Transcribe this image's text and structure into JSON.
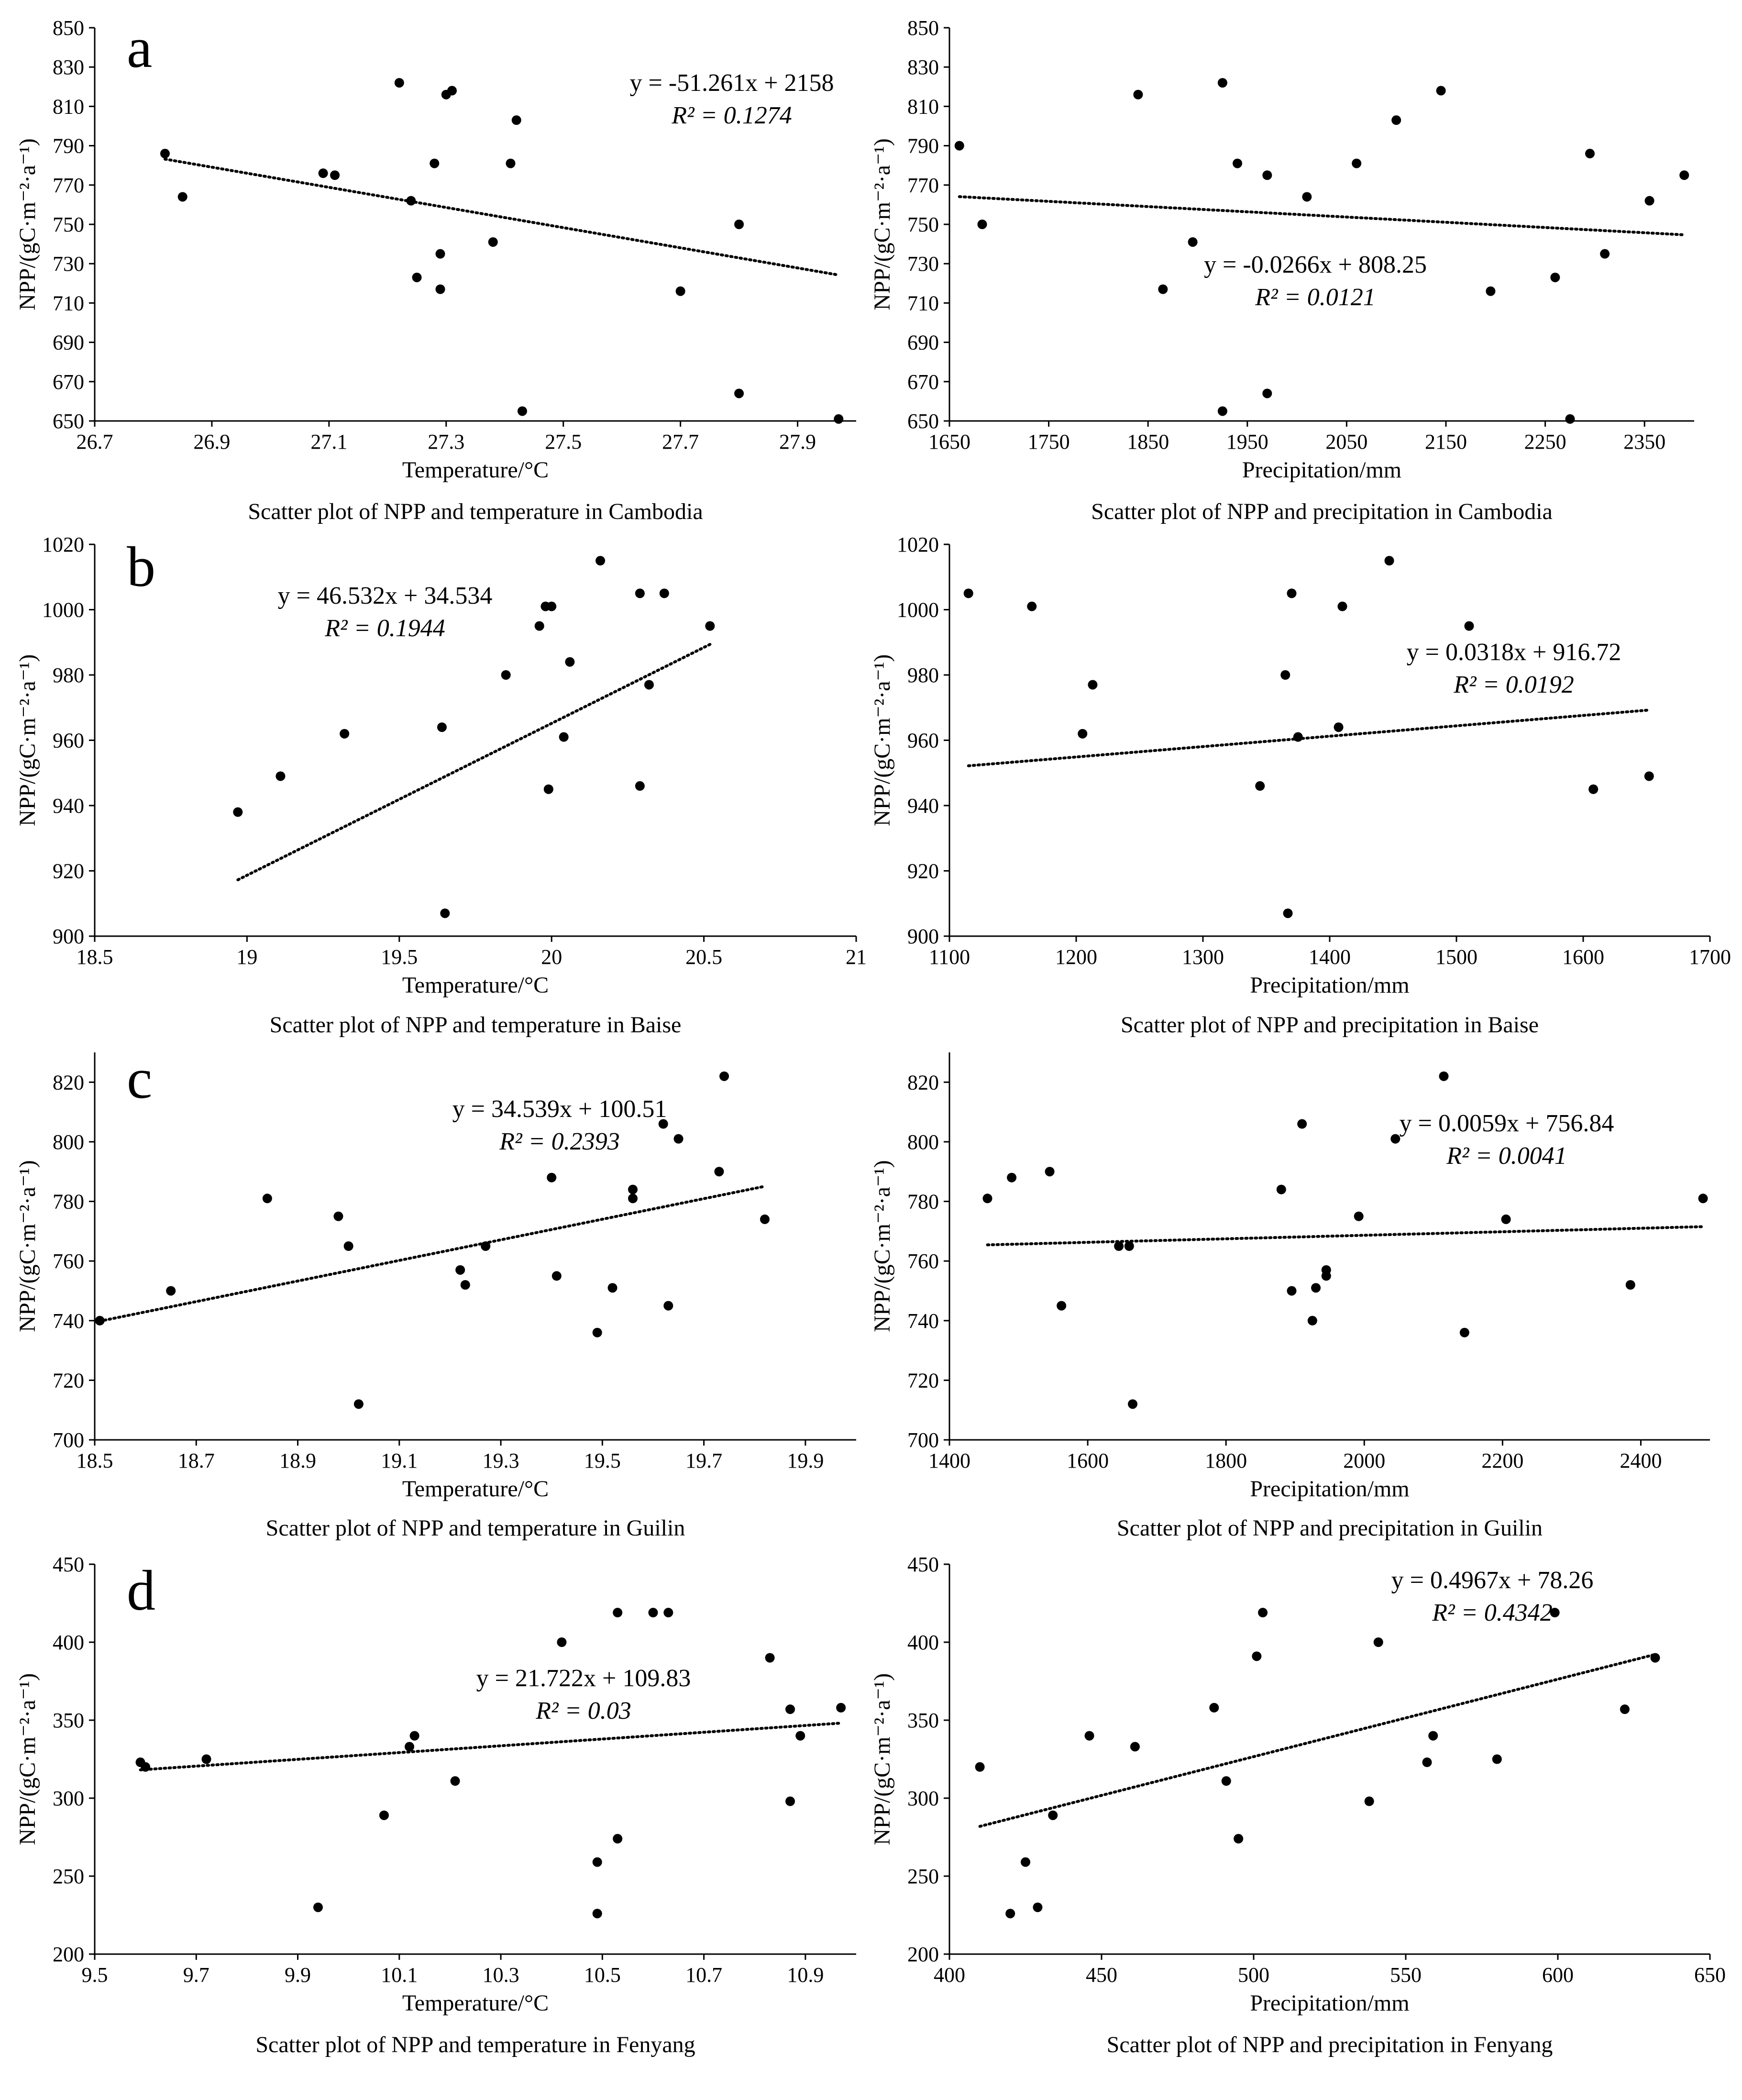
{
  "chart_data": [
    {
      "type": "scatter",
      "panel_letter": "a",
      "caption": "Scatter plot of NPP and temperature in Cambodia",
      "xlabel": "Temperature/°C",
      "ylabel": "NPP/(gC·m⁻²·a⁻¹)",
      "xlim": [
        26.7,
        28.0
      ],
      "ylim": [
        650,
        850
      ],
      "xticks": [
        "26.7",
        "26.9",
        "27.1",
        "27.3",
        "27.5",
        "27.7",
        "27.9"
      ],
      "yticks": [
        "650",
        "670",
        "690",
        "710",
        "730",
        "750",
        "770",
        "790",
        "810",
        "830",
        "850"
      ],
      "equation": "y = -51.261x + 2158",
      "r2_label": "R² = 0.1274",
      "trendline": {
        "slope": -51.261,
        "intercept": 2158
      },
      "points": [
        [
          26.82,
          786
        ],
        [
          26.85,
          764
        ],
        [
          27.09,
          776
        ],
        [
          27.11,
          775
        ],
        [
          27.22,
          822
        ],
        [
          27.24,
          762
        ],
        [
          27.25,
          723
        ],
        [
          27.28,
          781
        ],
        [
          27.29,
          735
        ],
        [
          27.29,
          717
        ],
        [
          27.3,
          816
        ],
        [
          27.31,
          818
        ],
        [
          27.38,
          741
        ],
        [
          27.41,
          781
        ],
        [
          27.42,
          803
        ],
        [
          27.43,
          655
        ],
        [
          27.7,
          716
        ],
        [
          27.8,
          750
        ],
        [
          27.8,
          664
        ],
        [
          27.97,
          651
        ]
      ]
    },
    {
      "type": "scatter",
      "caption": "Scatter plot of NPP and precipitation in Cambodia",
      "xlabel": "Precipitation/mm",
      "ylabel": "NPP/(gC·m⁻²·a⁻¹)",
      "xlim": [
        1650,
        2400
      ],
      "ylim": [
        650,
        850
      ],
      "xticks": [
        "1650",
        "1750",
        "1850",
        "1950",
        "2050",
        "2150",
        "2250",
        "2350"
      ],
      "yticks": [
        "650",
        "670",
        "690",
        "710",
        "730",
        "750",
        "770",
        "790",
        "810",
        "830",
        "850"
      ],
      "equation": "y = -0.0266x + 808.25",
      "r2_label": "R² = 0.0121",
      "trendline": {
        "slope": -0.0266,
        "intercept": 808.25
      },
      "points": [
        [
          1660,
          790
        ],
        [
          1683,
          750
        ],
        [
          1840,
          816
        ],
        [
          1865,
          717
        ],
        [
          1895,
          741
        ],
        [
          1925,
          822
        ],
        [
          1925,
          655
        ],
        [
          1940,
          781
        ],
        [
          1970,
          775
        ],
        [
          1970,
          664
        ],
        [
          2010,
          764
        ],
        [
          2060,
          781
        ],
        [
          2100,
          803
        ],
        [
          2145,
          818
        ],
        [
          2195,
          716
        ],
        [
          2260,
          723
        ],
        [
          2275,
          651
        ],
        [
          2295,
          786
        ],
        [
          2310,
          735
        ],
        [
          2355,
          762
        ],
        [
          2390,
          775
        ]
      ]
    },
    {
      "type": "scatter",
      "panel_letter": "b",
      "caption": "Scatter plot of NPP and temperature in Baise",
      "xlabel": "Temperature/°C",
      "ylabel": "NPP/(gC·m⁻²·a⁻¹)",
      "xlim": [
        18.5,
        21
      ],
      "ylim": [
        900,
        1020
      ],
      "xticks": [
        "18.5",
        "19",
        "19.5",
        "20",
        "20.5",
        "21"
      ],
      "yticks": [
        "900",
        "920",
        "940",
        "960",
        "980",
        "1000",
        "1020"
      ],
      "equation": "y = 46.532x + 34.534",
      "r2_label": "R² = 0.1944",
      "trendline": {
        "slope": 46.532,
        "intercept": 34.534
      },
      "points": [
        [
          18.97,
          938
        ],
        [
          19.11,
          949
        ],
        [
          19.32,
          962
        ],
        [
          19.64,
          964
        ],
        [
          19.65,
          907
        ],
        [
          19.85,
          980
        ],
        [
          19.96,
          995
        ],
        [
          19.98,
          1001
        ],
        [
          19.99,
          945
        ],
        [
          20.0,
          1001
        ],
        [
          20.04,
          961
        ],
        [
          20.06,
          984
        ],
        [
          20.16,
          1015
        ],
        [
          20.29,
          1005
        ],
        [
          20.29,
          946
        ],
        [
          20.32,
          977
        ],
        [
          20.37,
          1005
        ],
        [
          20.52,
          995
        ]
      ]
    },
    {
      "type": "scatter",
      "caption": "Scatter plot of NPP and precipitation in Baise",
      "xlabel": "Precipitation/mm",
      "ylabel": "NPP/(gC·m⁻²·a⁻¹)",
      "xlim": [
        1100,
        1700
      ],
      "ylim": [
        900,
        1020
      ],
      "xticks": [
        "1100",
        "1200",
        "1300",
        "1400",
        "1500",
        "1600",
        "1700"
      ],
      "yticks": [
        "900",
        "920",
        "940",
        "960",
        "980",
        "1000",
        "1020"
      ],
      "equation": "y = 0.0318x + 916.72",
      "r2_label": "R² = 0.0192",
      "trendline": {
        "slope": 0.0318,
        "intercept": 916.72
      },
      "points": [
        [
          1115,
          1005
        ],
        [
          1165,
          1001
        ],
        [
          1205,
          962
        ],
        [
          1213,
          977
        ],
        [
          1345,
          946
        ],
        [
          1365,
          980
        ],
        [
          1367,
          907
        ],
        [
          1370,
          1005
        ],
        [
          1375,
          961
        ],
        [
          1407,
          964
        ],
        [
          1410,
          1001
        ],
        [
          1447,
          1015
        ],
        [
          1510,
          995
        ],
        [
          1608,
          945
        ],
        [
          1652,
          949
        ]
      ]
    },
    {
      "type": "scatter",
      "panel_letter": "c",
      "caption": "Scatter plot of NPP and temperature in Guilin",
      "xlabel": "Temperature/°C",
      "ylabel": "NPP/(gC·m⁻²·a⁻¹)",
      "xlim": [
        18.5,
        20.0
      ],
      "ylim": [
        700,
        830
      ],
      "xticks": [
        "18.5",
        "18.7",
        "18.9",
        "19.1",
        "19.3",
        "19.5",
        "19.7",
        "19.9"
      ],
      "yticks": [
        "700",
        "720",
        "740",
        "760",
        "780",
        "800",
        "820"
      ],
      "equation": "y = 34.539x + 100.51",
      "r2_label": "R² = 0.2393",
      "trendline": {
        "slope": 34.539,
        "intercept": 100.51
      },
      "points": [
        [
          18.51,
          740
        ],
        [
          18.65,
          750
        ],
        [
          18.84,
          781
        ],
        [
          18.98,
          775
        ],
        [
          19.0,
          765
        ],
        [
          19.02,
          712
        ],
        [
          19.22,
          757
        ],
        [
          19.23,
          752
        ],
        [
          19.27,
          765
        ],
        [
          19.4,
          788
        ],
        [
          19.41,
          755
        ],
        [
          19.49,
          736
        ],
        [
          19.52,
          751
        ],
        [
          19.56,
          784
        ],
        [
          19.56,
          781
        ],
        [
          19.62,
          806
        ],
        [
          19.63,
          745
        ],
        [
          19.65,
          801
        ],
        [
          19.73,
          790
        ],
        [
          19.74,
          822
        ],
        [
          19.82,
          774
        ]
      ]
    },
    {
      "type": "scatter",
      "caption": "Scatter plot of NPP and precipitation in Guilin",
      "xlabel": "Precipitation/mm",
      "ylabel": "NPP/(gC·m⁻²·a⁻¹)",
      "xlim": [
        1400,
        2500
      ],
      "ylim": [
        700,
        830
      ],
      "xticks": [
        "1400",
        "1600",
        "1800",
        "2000",
        "2200",
        "2400"
      ],
      "yticks": [
        "700",
        "720",
        "740",
        "760",
        "780",
        "800",
        "820"
      ],
      "equation": "y = 0.0059x + 756.84",
      "r2_label": "R² = 0.0041",
      "trendline": {
        "slope": 0.0059,
        "intercept": 756.84
      },
      "points": [
        [
          1455,
          781
        ],
        [
          1490,
          788
        ],
        [
          1545,
          790
        ],
        [
          1562,
          745
        ],
        [
          1645,
          765
        ],
        [
          1660,
          765
        ],
        [
          1665,
          712
        ],
        [
          1880,
          784
        ],
        [
          1895,
          750
        ],
        [
          1910,
          806
        ],
        [
          1925,
          740
        ],
        [
          1930,
          751
        ],
        [
          1945,
          755
        ],
        [
          1945,
          757
        ],
        [
          1992,
          775
        ],
        [
          2045,
          801
        ],
        [
          2115,
          822
        ],
        [
          2145,
          736
        ],
        [
          2205,
          774
        ],
        [
          2385,
          752
        ],
        [
          2490,
          781
        ]
      ]
    },
    {
      "type": "scatter",
      "panel_letter": "d",
      "caption": "Scatter plot of NPP and temperature in Fenyang",
      "xlabel": "Temperature/°C",
      "ylabel": "NPP/(gC·m⁻²·a⁻¹)",
      "xlim": [
        9.5,
        11.0
      ],
      "ylim": [
        200,
        450
      ],
      "xticks": [
        "9.5",
        "9.7",
        "9.9",
        "10.1",
        "10.3",
        "10.5",
        "10.7",
        "10.9"
      ],
      "yticks": [
        "200",
        "250",
        "300",
        "350",
        "400",
        "450"
      ],
      "equation": "y = 21.722x + 109.83",
      "r2_label": "R² = 0.03",
      "trendline": {
        "slope": 21.722,
        "intercept": 109.83
      },
      "points": [
        [
          9.59,
          323
        ],
        [
          9.6,
          320
        ],
        [
          9.72,
          325
        ],
        [
          9.94,
          230
        ],
        [
          10.07,
          289
        ],
        [
          10.12,
          333
        ],
        [
          10.13,
          340
        ],
        [
          10.21,
          311
        ],
        [
          10.42,
          400
        ],
        [
          10.49,
          259
        ],
        [
          10.49,
          226
        ],
        [
          10.53,
          274
        ],
        [
          10.53,
          419
        ],
        [
          10.6,
          419
        ],
        [
          10.63,
          419
        ],
        [
          10.83,
          390
        ],
        [
          10.87,
          298
        ],
        [
          10.87,
          357
        ],
        [
          10.89,
          340
        ],
        [
          10.97,
          358
        ]
      ]
    },
    {
      "type": "scatter",
      "caption": "Scatter plot of NPP and precipitation in Fenyang",
      "xlabel": "Precipitation/mm",
      "ylabel": "NPP/(gC·m⁻²·a⁻¹)",
      "xlim": [
        400,
        650
      ],
      "ylim": [
        200,
        450
      ],
      "xticks": [
        "400",
        "450",
        "500",
        "550",
        "600",
        "650"
      ],
      "yticks": [
        "200",
        "250",
        "300",
        "350",
        "400",
        "450"
      ],
      "equation": "y = 0.4967x + 78.26",
      "r2_label": "R² = 0.4342",
      "trendline": {
        "slope": 0.4967,
        "intercept": 78.26
      },
      "points": [
        [
          410,
          320
        ],
        [
          420,
          226
        ],
        [
          425,
          259
        ],
        [
          429,
          230
        ],
        [
          434,
          289
        ],
        [
          446,
          340
        ],
        [
          461,
          333
        ],
        [
          487,
          358
        ],
        [
          491,
          311
        ],
        [
          495,
          274
        ],
        [
          501,
          391
        ],
        [
          503,
          419
        ],
        [
          538,
          298
        ],
        [
          541,
          400
        ],
        [
          557,
          323
        ],
        [
          559,
          340
        ],
        [
          580,
          325
        ],
        [
          599,
          419
        ],
        [
          622,
          357
        ],
        [
          632,
          390
        ]
      ]
    }
  ]
}
